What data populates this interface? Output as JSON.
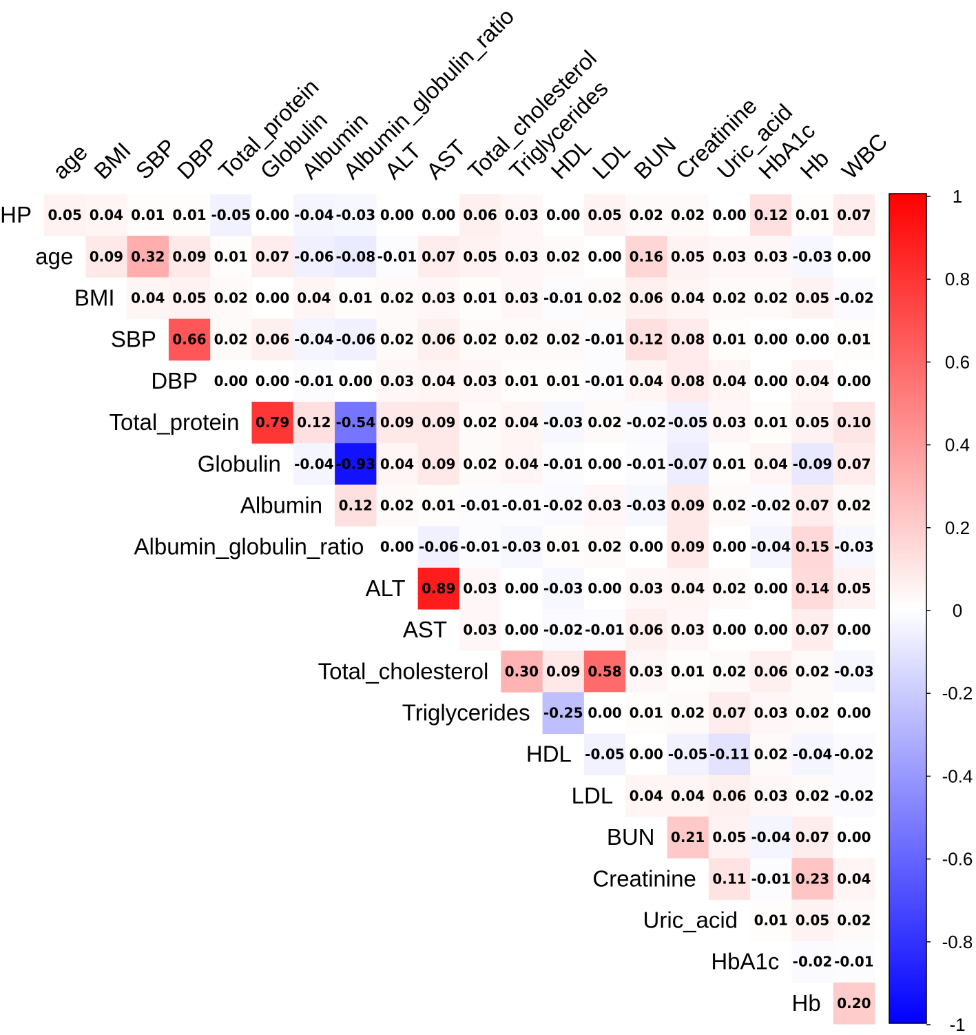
{
  "chart_data": {
    "type": "heatmap",
    "variant": "upper-triangle correlation matrix",
    "row_labels": [
      "HP",
      "age",
      "BMI",
      "SBP",
      "DBP",
      "Total_protein",
      "Globulin",
      "Albumin",
      "Albumin_globulin_ratio",
      "ALT",
      "AST",
      "Total_cholesterol",
      "Triglycerides",
      "HDL",
      "LDL",
      "BUN",
      "Creatinine",
      "Uric_acid",
      "HbA1c",
      "Hb"
    ],
    "col_labels": [
      "age",
      "BMI",
      "SBP",
      "DBP",
      "Total_protein",
      "Globulin",
      "Albumin",
      "Albumin_globulin_ratio",
      "ALT",
      "AST",
      "Total_cholesterol",
      "Triglycerides",
      "HDL",
      "LDL",
      "BUN",
      "Creatinine",
      "Uric_acid",
      "HbA1c",
      "Hb",
      "WBC"
    ],
    "values": [
      [
        "0.05",
        "0.04",
        "0.01",
        "0.01",
        "-0.05",
        "0.00",
        "-0.04",
        "-0.03",
        "0.00",
        "0.00",
        "0.06",
        "0.03",
        "0.00",
        "0.05",
        "0.02",
        "0.02",
        "0.00",
        "0.12",
        "0.01",
        "0.07"
      ],
      [
        "0.09",
        "0.32",
        "0.09",
        "0.01",
        "0.07",
        "-0.06",
        "-0.08",
        "-0.01",
        "0.07",
        "0.05",
        "0.03",
        "0.02",
        "0.00",
        "0.16",
        "0.05",
        "0.03",
        "0.03",
        "-0.03",
        "0.00"
      ],
      [
        "0.04",
        "0.05",
        "0.02",
        "0.00",
        "0.04",
        "0.01",
        "0.02",
        "0.03",
        "0.01",
        "0.03",
        "-0.01",
        "0.02",
        "0.06",
        "0.04",
        "0.02",
        "0.02",
        "0.05",
        "-0.02"
      ],
      [
        "0.66",
        "0.02",
        "0.06",
        "-0.04",
        "-0.06",
        "0.02",
        "0.06",
        "0.02",
        "0.02",
        "0.02",
        "-0.01",
        "0.12",
        "0.08",
        "0.01",
        "0.00",
        "0.00",
        "0.01"
      ],
      [
        "0.00",
        "0.00",
        "-0.01",
        "0.00",
        "0.03",
        "0.04",
        "0.03",
        "0.01",
        "0.01",
        "-0.01",
        "0.04",
        "0.08",
        "0.04",
        "0.00",
        "0.04",
        "0.00"
      ],
      [
        "0.79",
        "0.12",
        "-0.54",
        "0.09",
        "0.09",
        "0.02",
        "0.04",
        "-0.03",
        "0.02",
        "-0.02",
        "-0.05",
        "0.03",
        "0.01",
        "0.05",
        "0.10"
      ],
      [
        "-0.04",
        "-0.93",
        "0.04",
        "0.09",
        "0.02",
        "0.04",
        "-0.01",
        "0.00",
        "-0.01",
        "-0.07",
        "0.01",
        "0.04",
        "-0.09",
        "0.07"
      ],
      [
        "0.12",
        "0.02",
        "0.01",
        "-0.01",
        "-0.01",
        "-0.02",
        "0.03",
        "-0.03",
        "0.09",
        "0.02",
        "-0.02",
        "0.07",
        "0.02"
      ],
      [
        "0.00",
        "-0.06",
        "-0.01",
        "-0.03",
        "0.01",
        "0.02",
        "0.00",
        "0.09",
        "0.00",
        "-0.04",
        "0.15",
        "-0.03"
      ],
      [
        "0.89",
        "0.03",
        "0.00",
        "-0.03",
        "0.00",
        "0.03",
        "0.04",
        "0.02",
        "0.00",
        "0.14",
        "0.05"
      ],
      [
        "0.03",
        "0.00",
        "-0.02",
        "-0.01",
        "0.06",
        "0.03",
        "0.00",
        "0.00",
        "0.07",
        "0.00"
      ],
      [
        "0.30",
        "0.09",
        "0.58",
        "0.03",
        "0.01",
        "0.02",
        "0.06",
        "0.02",
        "-0.03"
      ],
      [
        "-0.25",
        "0.00",
        "0.01",
        "0.02",
        "0.07",
        "0.03",
        "0.02",
        "0.00"
      ],
      [
        "-0.05",
        "0.00",
        "-0.05",
        "-0.11",
        "0.02",
        "-0.04",
        "-0.02"
      ],
      [
        "0.04",
        "0.04",
        "0.06",
        "0.03",
        "0.02",
        "-0.02"
      ],
      [
        "0.21",
        "0.05",
        "-0.04",
        "0.07",
        "0.00"
      ],
      [
        "0.11",
        "-0.01",
        "0.23",
        "0.04"
      ],
      [
        "0.01",
        "0.05",
        "0.02"
      ],
      [
        "-0.02",
        "-0.01"
      ],
      [
        "0.20"
      ]
    ],
    "color_scale": {
      "low": "#0000ff",
      "mid": "#ffffff",
      "high": "#ff0000",
      "min": -1,
      "max": 1
    },
    "legend": {
      "position": "right",
      "ticks": [
        "1",
        "0.8",
        "0.6",
        "0.4",
        "0.2",
        "0",
        "-0.2",
        "-0.4",
        "-0.6",
        "-0.8",
        "-1"
      ]
    }
  }
}
